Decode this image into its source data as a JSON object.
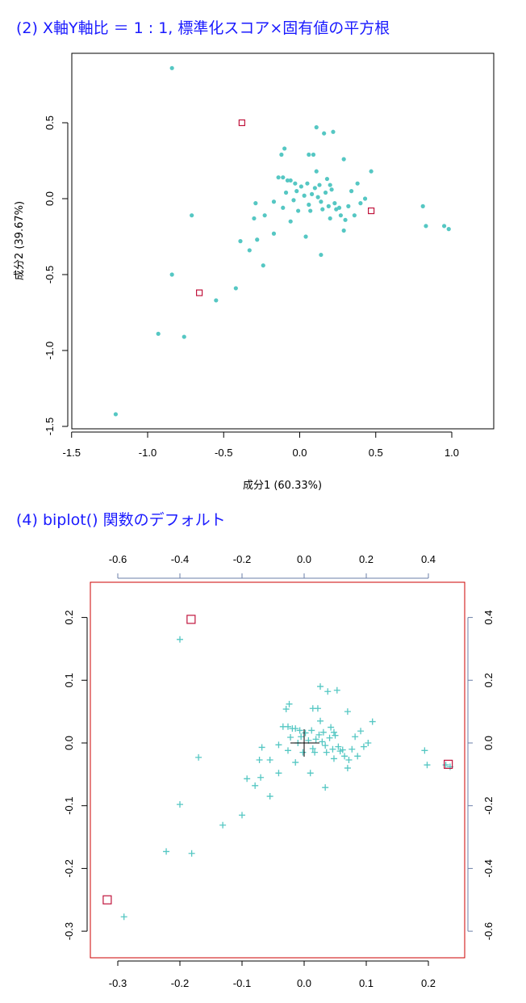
{
  "panels": [
    {
      "heading": "(2)  X軸Y軸比 ＝ 1 : 1,  標準化スコア×固有値の平方根"
    },
    {
      "heading": "(4)  biplot() 関数のデフォルト"
    }
  ],
  "colors": {
    "points": "#55c7c3",
    "highlight": "#c0143c",
    "frame": "#000000",
    "biplot_frame": "#cc0000",
    "heading": "#1a1aff"
  },
  "chart_data": [
    {
      "type": "scatter",
      "xlabel": "成分1 (60.33%)",
      "ylabel": "成分2 (39.67%)",
      "xlim": [
        -1.5,
        1.25
      ],
      "ylim": [
        -1.5,
        1.0
      ],
      "xticks": [
        "-1.5",
        "-1.0",
        "-0.5",
        "0.0",
        "0.5",
        "1.0"
      ],
      "yticks": [
        "-1.5",
        "-1.0",
        "-0.5",
        "0.0",
        "0.5"
      ],
      "points": [
        [
          -0.84,
          0.86
        ],
        [
          -1.21,
          -1.42
        ],
        [
          -0.93,
          -0.89
        ],
        [
          -0.76,
          -0.91
        ],
        [
          -0.84,
          -0.5
        ],
        [
          -0.71,
          -0.11
        ],
        [
          -0.55,
          -0.67
        ],
        [
          -0.42,
          -0.59
        ],
        [
          -0.39,
          -0.28
        ],
        [
          -0.33,
          -0.34
        ],
        [
          -0.28,
          -0.27
        ],
        [
          -0.3,
          -0.13
        ],
        [
          -0.29,
          -0.03
        ],
        [
          -0.24,
          -0.44
        ],
        [
          -0.23,
          -0.11
        ],
        [
          -0.17,
          -0.23
        ],
        [
          -0.17,
          -0.02
        ],
        [
          -0.14,
          0.14
        ],
        [
          -0.12,
          0.29
        ],
        [
          -0.1,
          0.33
        ],
        [
          -0.11,
          0.14
        ],
        [
          -0.09,
          0.04
        ],
        [
          -0.08,
          0.12
        ],
        [
          -0.06,
          0.12
        ],
        [
          -0.11,
          -0.06
        ],
        [
          -0.06,
          -0.15
        ],
        [
          -0.04,
          -0.01
        ],
        [
          -0.03,
          0.1
        ],
        [
          -0.02,
          0.05
        ],
        [
          -0.01,
          -0.08
        ],
        [
          0.01,
          0.08
        ],
        [
          0.03,
          0.02
        ],
        [
          0.05,
          0.1
        ],
        [
          0.06,
          -0.04
        ],
        [
          0.06,
          0.29
        ],
        [
          0.07,
          -0.08
        ],
        [
          0.08,
          0.03
        ],
        [
          0.09,
          0.29
        ],
        [
          0.1,
          0.07
        ],
        [
          0.11,
          0.18
        ],
        [
          0.11,
          0.47
        ],
        [
          0.12,
          0.01
        ],
        [
          0.13,
          0.09
        ],
        [
          0.14,
          -0.02
        ],
        [
          0.15,
          -0.07
        ],
        [
          0.16,
          0.43
        ],
        [
          0.17,
          0.04
        ],
        [
          0.18,
          0.13
        ],
        [
          0.19,
          -0.05
        ],
        [
          0.2,
          0.09
        ],
        [
          0.21,
          0.06
        ],
        [
          0.22,
          0.44
        ],
        [
          0.23,
          -0.03
        ],
        [
          0.24,
          -0.07
        ],
        [
          0.26,
          -0.06
        ],
        [
          0.27,
          -0.11
        ],
        [
          0.29,
          0.26
        ],
        [
          0.3,
          -0.14
        ],
        [
          0.32,
          -0.05
        ],
        [
          0.34,
          0.05
        ],
        [
          0.36,
          -0.11
        ],
        [
          0.38,
          0.1
        ],
        [
          0.4,
          -0.03
        ],
        [
          0.43,
          0.0
        ],
        [
          0.47,
          0.18
        ],
        [
          0.04,
          -0.25
        ],
        [
          0.14,
          -0.37
        ],
        [
          0.29,
          -0.21
        ],
        [
          0.2,
          -0.13
        ],
        [
          0.81,
          -0.05
        ],
        [
          0.83,
          -0.18
        ],
        [
          0.95,
          -0.18
        ],
        [
          0.98,
          -0.2
        ]
      ],
      "highlights": [
        [
          -0.38,
          0.5
        ],
        [
          -0.66,
          -0.62
        ],
        [
          0.47,
          -0.08
        ]
      ]
    },
    {
      "type": "scatter",
      "xlim": [
        -0.34,
        0.25
      ],
      "ylim": [
        -0.34,
        0.24
      ],
      "xticks": [
        "-0.3",
        "-0.2",
        "-0.1",
        "0.0",
        "0.1",
        "0.2"
      ],
      "yticks": [
        "-0.3",
        "-0.2",
        "-0.1",
        "0.0",
        "0.1",
        "0.2"
      ],
      "top_ticks": [
        "-0.6",
        "-0.4",
        "-0.2",
        "0.0",
        "0.2",
        "0.4"
      ],
      "right_ticks": [
        "-0.6",
        "-0.4",
        "-0.2",
        "0.0",
        "0.2",
        "0.4"
      ],
      "secondary_scale": 2.0,
      "points": [
        [
          -0.2,
          0.165
        ],
        [
          -0.29,
          -0.277
        ],
        [
          -0.222,
          -0.173
        ],
        [
          -0.181,
          -0.176
        ],
        [
          -0.2,
          -0.098
        ],
        [
          -0.17,
          -0.023
        ],
        [
          -0.131,
          -0.131
        ],
        [
          -0.1,
          -0.115
        ],
        [
          -0.092,
          -0.057
        ],
        [
          -0.079,
          -0.068
        ],
        [
          -0.07,
          -0.055
        ],
        [
          -0.072,
          -0.027
        ],
        [
          -0.068,
          -0.007
        ],
        [
          -0.055,
          -0.085
        ],
        [
          -0.055,
          -0.027
        ],
        [
          -0.041,
          -0.048
        ],
        [
          -0.041,
          -0.003
        ],
        [
          -0.034,
          0.026
        ],
        [
          -0.029,
          0.054
        ],
        [
          -0.024,
          0.062
        ],
        [
          -0.026,
          0.026
        ],
        [
          -0.022,
          0.009
        ],
        [
          -0.019,
          0.023
        ],
        [
          -0.014,
          0.023
        ],
        [
          -0.026,
          -0.012
        ],
        [
          -0.014,
          -0.031
        ],
        [
          -0.01,
          0.0
        ],
        [
          -0.007,
          0.02
        ],
        [
          -0.005,
          0.01
        ],
        [
          -0.002,
          -0.015
        ],
        [
          0.002,
          0.016
        ],
        [
          0.007,
          0.004
        ],
        [
          0.012,
          0.02
        ],
        [
          0.014,
          -0.009
        ],
        [
          0.014,
          0.055
        ],
        [
          0.017,
          -0.015
        ],
        [
          0.019,
          0.006
        ],
        [
          0.022,
          0.055
        ],
        [
          0.024,
          0.013
        ],
        [
          0.026,
          0.035
        ],
        [
          0.026,
          0.09
        ],
        [
          0.029,
          0.002
        ],
        [
          0.031,
          0.017
        ],
        [
          0.034,
          -0.004
        ],
        [
          0.036,
          -0.015
        ],
        [
          0.038,
          0.082
        ],
        [
          0.041,
          0.008
        ],
        [
          0.043,
          0.025
        ],
        [
          0.046,
          -0.01
        ],
        [
          0.048,
          0.017
        ],
        [
          0.05,
          0.012
        ],
        [
          0.053,
          0.084
        ],
        [
          0.055,
          -0.006
        ],
        [
          0.058,
          -0.013
        ],
        [
          0.062,
          -0.011
        ],
        [
          0.065,
          -0.021
        ],
        [
          0.07,
          0.05
        ],
        [
          0.072,
          -0.027
        ],
        [
          0.077,
          -0.01
        ],
        [
          0.082,
          0.01
        ],
        [
          0.086,
          -0.021
        ],
        [
          0.091,
          0.019
        ],
        [
          0.096,
          -0.006
        ],
        [
          0.103,
          0.0
        ],
        [
          0.11,
          0.034
        ],
        [
          0.01,
          -0.048
        ],
        [
          0.034,
          -0.071
        ],
        [
          0.07,
          -0.04
        ],
        [
          0.048,
          -0.025
        ],
        [
          0.194,
          -0.012
        ],
        [
          0.198,
          -0.035
        ],
        [
          0.228,
          -0.035
        ],
        [
          0.235,
          -0.038
        ]
      ],
      "highlights": [
        [
          -0.182,
          0.197
        ],
        [
          -0.317,
          -0.25
        ],
        [
          0.232,
          -0.034
        ]
      ]
    }
  ]
}
